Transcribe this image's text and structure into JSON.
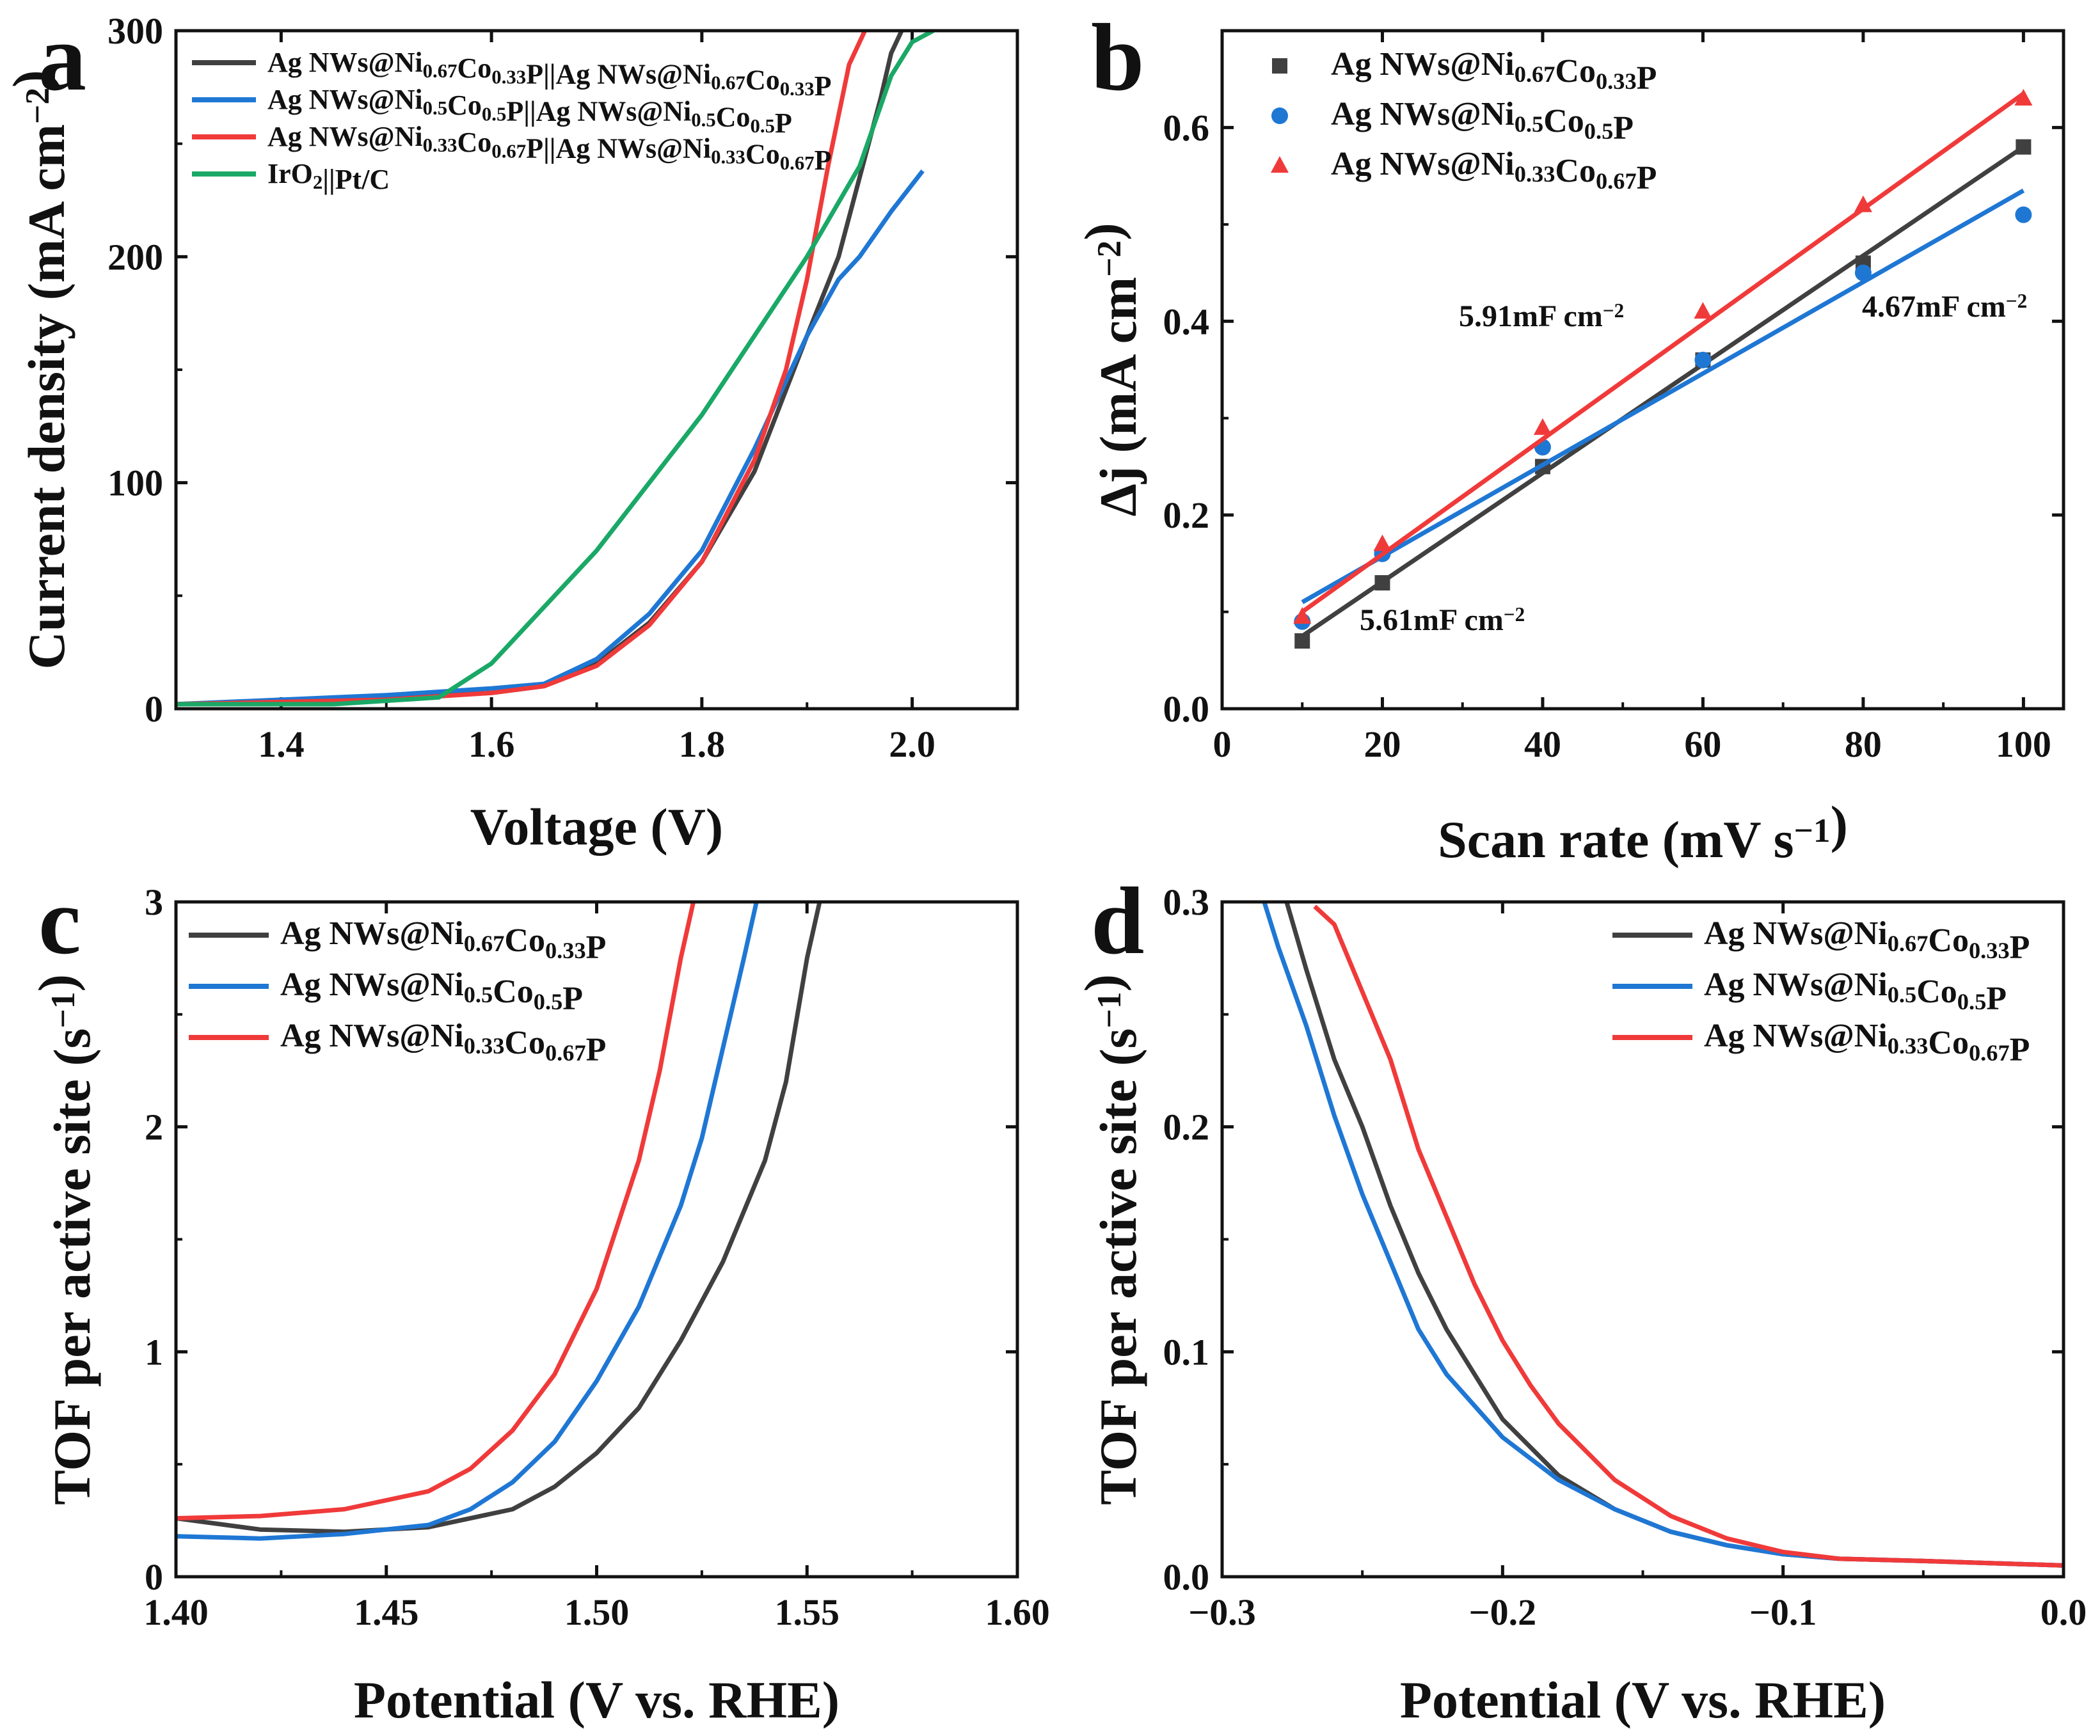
{
  "colors": {
    "black": "#404040",
    "blue": "#1f77d4",
    "red": "#f03a3a",
    "green": "#1aa866",
    "axis": "#111111"
  },
  "chart_data": [
    {
      "panel": "a",
      "type": "line",
      "title": "",
      "xlabel": "Voltage (V)",
      "ylabel": "Current density (mA cm⁻²)",
      "xlim": [
        1.3,
        2.1
      ],
      "ylim": [
        0,
        300
      ],
      "xticks": [
        "1.4",
        "1.6",
        "1.8",
        "2.0"
      ],
      "yticks": [
        "0",
        "100",
        "200",
        "300"
      ],
      "legend_position": "top-left",
      "series": [
        {
          "name": "Ag NWs@Ni0.67Co0.33P||Ag NWs@Ni0.67Co0.33P",
          "parts": [
            [
              "Ag NWs@Ni",
              ""
            ],
            [
              "0.67",
              "sub"
            ],
            [
              "Co",
              ""
            ],
            [
              "0.33",
              "sub"
            ],
            [
              "P||Ag NWs@Ni",
              ""
            ],
            [
              "0.67",
              "sub"
            ],
            [
              "Co",
              ""
            ],
            [
              "0.33",
              "sub"
            ],
            [
              "P",
              ""
            ]
          ],
          "color": "black",
          "x": [
            1.3,
            1.5,
            1.6,
            1.65,
            1.7,
            1.75,
            1.8,
            1.85,
            1.9,
            1.93,
            1.95,
            1.97,
            1.98,
            1.99
          ],
          "y": [
            2,
            5,
            7,
            10,
            20,
            38,
            65,
            105,
            165,
            200,
            235,
            270,
            290,
            300
          ]
        },
        {
          "name": "Ag NWs@Ni0.5Co0.5P||Ag NWs@Ni0.5Co0.5P",
          "parts": [
            [
              "Ag NWs@Ni",
              ""
            ],
            [
              "0.5",
              "sub"
            ],
            [
              "Co",
              ""
            ],
            [
              "0.5",
              "sub"
            ],
            [
              "P||Ag NWs@Ni",
              ""
            ],
            [
              "0.5",
              "sub"
            ],
            [
              "Co",
              ""
            ],
            [
              "0.5",
              "sub"
            ],
            [
              "P",
              ""
            ]
          ],
          "color": "blue",
          "x": [
            1.3,
            1.5,
            1.6,
            1.65,
            1.7,
            1.75,
            1.8,
            1.85,
            1.9,
            1.93,
            1.95,
            1.98,
            2.01
          ],
          "y": [
            2,
            6,
            9,
            11,
            22,
            42,
            70,
            115,
            165,
            190,
            200,
            220,
            238
          ]
        },
        {
          "name": "Ag NWs@Ni0.33Co0.67P||Ag NWs@Ni0.33Co0.67P",
          "parts": [
            [
              "Ag NWs@Ni",
              ""
            ],
            [
              "0.33",
              "sub"
            ],
            [
              "Co",
              ""
            ],
            [
              "0.67",
              "sub"
            ],
            [
              "P||Ag NWs@Ni",
              ""
            ],
            [
              "0.33",
              "sub"
            ],
            [
              "Co",
              ""
            ],
            [
              "0.67",
              "sub"
            ],
            [
              "P",
              ""
            ]
          ],
          "color": "red",
          "x": [
            1.3,
            1.5,
            1.6,
            1.65,
            1.7,
            1.75,
            1.8,
            1.85,
            1.88,
            1.9,
            1.92,
            1.94,
            1.955
          ],
          "y": [
            2,
            4,
            7,
            10,
            19,
            37,
            65,
            110,
            150,
            190,
            240,
            285,
            300
          ]
        },
        {
          "name": "IrO2||Pt/C",
          "parts": [
            [
              "IrO",
              ""
            ],
            [
              "2",
              "sub"
            ],
            [
              "||Pt/C",
              ""
            ]
          ],
          "color": "green",
          "x": [
            1.3,
            1.45,
            1.55,
            1.6,
            1.65,
            1.7,
            1.75,
            1.8,
            1.85,
            1.9,
            1.95,
            1.98,
            2.0,
            2.02
          ],
          "y": [
            2,
            2,
            5,
            20,
            45,
            70,
            100,
            130,
            165,
            200,
            240,
            280,
            295,
            300
          ]
        }
      ]
    },
    {
      "panel": "b",
      "type": "scatter",
      "title": "",
      "xlabel": "Scan rate (mV s⁻¹)",
      "ylabel": "Δj (mA cm⁻²)",
      "xlim": [
        0,
        105
      ],
      "ylim": [
        0,
        0.7
      ],
      "xticks": [
        "0",
        "20",
        "40",
        "60",
        "80",
        "100"
      ],
      "yticks": [
        "0.0",
        "0.2",
        "0.4",
        "0.6"
      ],
      "legend_position": "top-left",
      "x": [
        10,
        20,
        40,
        60,
        80,
        100
      ],
      "series": [
        {
          "name": "Ag NWs@Ni0.67Co0.33P",
          "parts": [
            [
              "Ag NWs@Ni",
              ""
            ],
            [
              "0.67",
              "sub"
            ],
            [
              "Co",
              ""
            ],
            [
              "0.33",
              "sub"
            ],
            [
              "P",
              ""
            ]
          ],
          "color": "black",
          "marker": "square",
          "values": [
            0.07,
            0.13,
            0.25,
            0.36,
            0.46,
            0.58
          ],
          "fit": [
            [
              10,
              0.075
            ],
            [
              100,
              0.58
            ]
          ],
          "label": "5.61mF cm⁻²"
        },
        {
          "name": "Ag NWs@Ni0.5Co0.5P",
          "parts": [
            [
              "Ag NWs@Ni",
              ""
            ],
            [
              "0.5",
              "sub"
            ],
            [
              "Co",
              ""
            ],
            [
              "0.5",
              "sub"
            ],
            [
              "P",
              ""
            ]
          ],
          "color": "blue",
          "marker": "circle",
          "values": [
            0.09,
            0.16,
            0.27,
            0.36,
            0.45,
            0.51
          ],
          "fit": [
            [
              10,
              0.11
            ],
            [
              100,
              0.535
            ]
          ],
          "label": "4.67mF cm⁻²"
        },
        {
          "name": "Ag NWs@Ni0.33Co0.67P",
          "parts": [
            [
              "Ag NWs@Ni",
              ""
            ],
            [
              "0.33",
              "sub"
            ],
            [
              "Co",
              ""
            ],
            [
              "0.67",
              "sub"
            ],
            [
              "P",
              ""
            ]
          ],
          "color": "red",
          "marker": "triangle",
          "values": [
            0.095,
            0.17,
            0.29,
            0.41,
            0.52,
            0.63
          ],
          "fit": [
            [
              10,
              0.1
            ],
            [
              100,
              0.635
            ]
          ],
          "label": "5.91mF cm⁻²"
        }
      ]
    },
    {
      "panel": "c",
      "type": "line",
      "title": "",
      "xlabel": "Potential (V vs. RHE)",
      "ylabel": "TOF per active site (s⁻¹)",
      "xlim": [
        1.4,
        1.6
      ],
      "ylim": [
        0,
        3
      ],
      "xticks": [
        "1.40",
        "1.45",
        "1.50",
        "1.55",
        "1.60"
      ],
      "yticks": [
        "0",
        "1",
        "2",
        "3"
      ],
      "legend_position": "top-left",
      "series": [
        {
          "name": "Ag NWs@Ni0.67Co0.33P",
          "parts": [
            [
              "Ag NWs@Ni",
              ""
            ],
            [
              "0.67",
              "sub"
            ],
            [
              "Co",
              ""
            ],
            [
              "0.33",
              "sub"
            ],
            [
              "P",
              ""
            ]
          ],
          "color": "black",
          "x": [
            1.4,
            1.42,
            1.44,
            1.46,
            1.48,
            1.49,
            1.5,
            1.51,
            1.52,
            1.53,
            1.54,
            1.545,
            1.55,
            1.553
          ],
          "y": [
            0.26,
            0.21,
            0.2,
            0.22,
            0.3,
            0.4,
            0.55,
            0.75,
            1.05,
            1.4,
            1.85,
            2.2,
            2.75,
            3.0
          ]
        },
        {
          "name": "Ag NWs@Ni0.5Co0.5P",
          "parts": [
            [
              "Ag NWs@Ni",
              ""
            ],
            [
              "0.5",
              "sub"
            ],
            [
              "Co",
              ""
            ],
            [
              "0.5",
              "sub"
            ],
            [
              "P",
              ""
            ]
          ],
          "color": "blue",
          "x": [
            1.4,
            1.42,
            1.44,
            1.46,
            1.47,
            1.48,
            1.49,
            1.5,
            1.51,
            1.52,
            1.525,
            1.53,
            1.535,
            1.538
          ],
          "y": [
            0.18,
            0.17,
            0.19,
            0.23,
            0.3,
            0.42,
            0.6,
            0.87,
            1.2,
            1.65,
            1.95,
            2.35,
            2.75,
            3.0
          ]
        },
        {
          "name": "Ag NWs@Ni0.33Co0.67P",
          "parts": [
            [
              "Ag NWs@Ni",
              ""
            ],
            [
              "0.33",
              "sub"
            ],
            [
              "Co",
              ""
            ],
            [
              "0.67",
              "sub"
            ],
            [
              "P",
              ""
            ]
          ],
          "color": "red",
          "x": [
            1.4,
            1.42,
            1.44,
            1.46,
            1.47,
            1.48,
            1.49,
            1.5,
            1.51,
            1.515,
            1.52,
            1.523
          ],
          "y": [
            0.26,
            0.27,
            0.3,
            0.38,
            0.48,
            0.65,
            0.9,
            1.28,
            1.85,
            2.25,
            2.75,
            3.0
          ]
        }
      ]
    },
    {
      "panel": "d",
      "type": "line",
      "title": "",
      "xlabel": "Potential (V vs. RHE)",
      "ylabel": "TOF per active site (s⁻¹)",
      "xlim": [
        -0.3,
        0.0
      ],
      "ylim": [
        0,
        0.3
      ],
      "xticks": [
        "−0.3",
        "−0.2",
        "−0.1",
        "0.0"
      ],
      "yticks": [
        "0.0",
        "0.1",
        "0.2",
        "0.3"
      ],
      "legend_position": "top-right",
      "series": [
        {
          "name": "Ag NWs@Ni0.67Co0.33P",
          "parts": [
            [
              "Ag NWs@Ni",
              ""
            ],
            [
              "0.67",
              "sub"
            ],
            [
              "Co",
              ""
            ],
            [
              "0.33",
              "sub"
            ],
            [
              "P",
              ""
            ]
          ],
          "color": "black",
          "x": [
            -0.277,
            -0.27,
            -0.26,
            -0.25,
            -0.24,
            -0.23,
            -0.22,
            -0.2,
            -0.18,
            -0.16,
            -0.14,
            -0.12,
            -0.1,
            -0.08,
            -0.05,
            0.0
          ],
          "y": [
            0.3,
            0.27,
            0.23,
            0.2,
            0.165,
            0.135,
            0.11,
            0.07,
            0.045,
            0.03,
            0.02,
            0.014,
            0.01,
            0.008,
            0.007,
            0.005
          ]
        },
        {
          "name": "Ag NWs@Ni0.5Co0.5P",
          "parts": [
            [
              "Ag NWs@Ni",
              ""
            ],
            [
              "0.5",
              "sub"
            ],
            [
              "Co",
              ""
            ],
            [
              "0.5",
              "sub"
            ],
            [
              "P",
              ""
            ]
          ],
          "color": "blue",
          "x": [
            -0.285,
            -0.28,
            -0.27,
            -0.26,
            -0.25,
            -0.24,
            -0.23,
            -0.22,
            -0.2,
            -0.18,
            -0.16,
            -0.14,
            -0.12,
            -0.1,
            -0.08,
            -0.05,
            0.0
          ],
          "y": [
            0.3,
            0.28,
            0.245,
            0.205,
            0.17,
            0.14,
            0.11,
            0.09,
            0.062,
            0.043,
            0.03,
            0.02,
            0.014,
            0.01,
            0.008,
            0.007,
            0.005
          ]
        },
        {
          "name": "Ag NWs@Ni0.33Co0.67P",
          "parts": [
            [
              "Ag NWs@Ni",
              ""
            ],
            [
              "0.33",
              "sub"
            ],
            [
              "Co",
              ""
            ],
            [
              "0.67",
              "sub"
            ],
            [
              "P",
              ""
            ]
          ],
          "color": "red",
          "x": [
            -0.267,
            -0.26,
            -0.25,
            -0.24,
            -0.23,
            -0.22,
            -0.21,
            -0.2,
            -0.19,
            -0.18,
            -0.16,
            -0.14,
            -0.12,
            -0.1,
            -0.08,
            -0.05,
            0.0
          ],
          "y": [
            0.298,
            0.29,
            0.26,
            0.23,
            0.19,
            0.16,
            0.13,
            0.105,
            0.085,
            0.068,
            0.043,
            0.027,
            0.017,
            0.011,
            0.008,
            0.007,
            0.005
          ]
        }
      ]
    }
  ]
}
